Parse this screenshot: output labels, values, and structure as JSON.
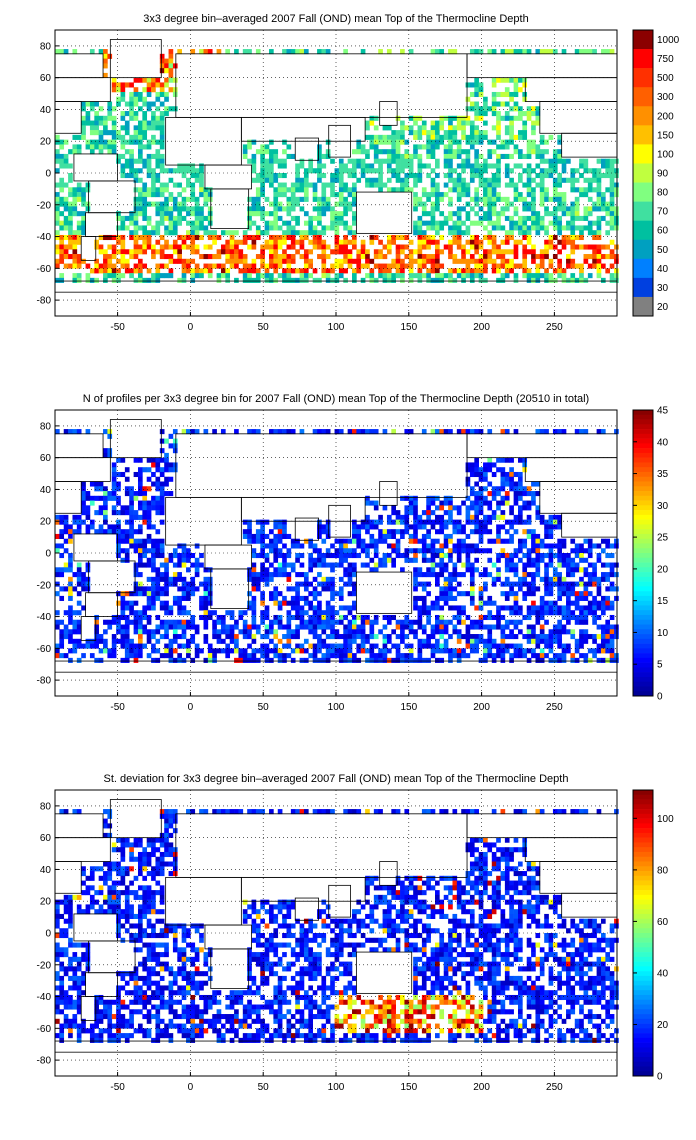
{
  "chart_data": [
    {
      "type": "heatmap",
      "title": "3x3 degree bin–averaged 2007 Fall (OND) mean Top of the Thermocline Depth",
      "xlim": [
        -93,
        293
      ],
      "ylim": [
        -90,
        90
      ],
      "xticks": [
        "-50",
        "0",
        "50",
        "100",
        "150",
        "200",
        "250"
      ],
      "yticks": [
        "80",
        "60",
        "40",
        "20",
        "0",
        "-20",
        "-40",
        "-60",
        "-80"
      ],
      "colorbar_scale": "categorical",
      "colorbar_ticks": [
        "1000",
        "750",
        "500",
        "300",
        "200",
        "150",
        "100",
        "90",
        "80",
        "70",
        "60",
        "50",
        "40",
        "30",
        "20"
      ],
      "colorbar_colors": [
        "#8b0000",
        "#ff0000",
        "#ff3000",
        "#ff6000",
        "#ff9000",
        "#ffc000",
        "#ffff00",
        "#c0ff3f",
        "#80ff80",
        "#40e0a0",
        "#00c0a0",
        "#00a0c0",
        "#0080ff",
        "#0040e0",
        "#808080"
      ],
      "colormap": [
        "#808080",
        "#0040e0",
        "#0080ff",
        "#00a0c0",
        "#00c0a0",
        "#40e0a0",
        "#80ff80",
        "#c0ff3f",
        "#ffff00",
        "#ffc000",
        "#ff9000",
        "#ff6000",
        "#ff3000",
        "#ff0000",
        "#8b0000"
      ],
      "field": "thermocline_depth"
    },
    {
      "type": "heatmap",
      "title": "N of profiles per 3x3 degree bin for 2007 Fall (OND) mean Top of the Thermocline Depth  (20510 in total)",
      "xlim": [
        -93,
        293
      ],
      "ylim": [
        -90,
        90
      ],
      "xticks": [
        "-50",
        "0",
        "50",
        "100",
        "150",
        "200",
        "250"
      ],
      "yticks": [
        "80",
        "60",
        "40",
        "20",
        "0",
        "-20",
        "-40",
        "-60",
        "-80"
      ],
      "colorbar_scale": "linear",
      "colorbar_range": [
        0,
        45
      ],
      "colorbar_ticks": [
        "45",
        "40",
        "35",
        "30",
        "25",
        "20",
        "15",
        "10",
        "5",
        "0"
      ],
      "colormap": [
        "#00008f",
        "#0000ff",
        "#0080ff",
        "#00ffff",
        "#80ff80",
        "#ffff00",
        "#ff8000",
        "#ff0000",
        "#800000"
      ],
      "field": "profile_count"
    },
    {
      "type": "heatmap",
      "title": "St. deviation for 3x3 degree bin–averaged 2007 Fall (OND) mean Top of the Thermocline Depth",
      "xlim": [
        -93,
        293
      ],
      "ylim": [
        -90,
        90
      ],
      "xticks": [
        "-50",
        "0",
        "50",
        "100",
        "150",
        "200",
        "250"
      ],
      "yticks": [
        "80",
        "60",
        "40",
        "20",
        "0",
        "-20",
        "-40",
        "-60",
        "-80"
      ],
      "colorbar_scale": "linear",
      "colorbar_range": [
        0,
        111
      ],
      "colorbar_ticks": [
        "100",
        "80",
        "60",
        "40",
        "20",
        "0"
      ],
      "colormap": [
        "#00008f",
        "#0000ff",
        "#0080ff",
        "#00ffff",
        "#80ff80",
        "#ffff00",
        "#ff8000",
        "#ff0000",
        "#800000"
      ],
      "field": "std_deviation"
    }
  ]
}
